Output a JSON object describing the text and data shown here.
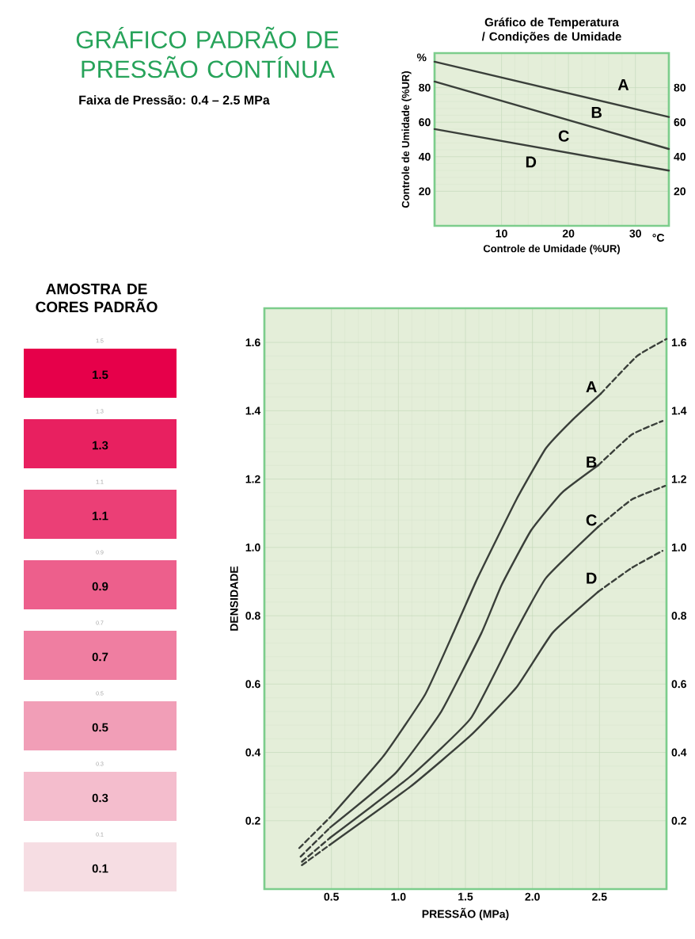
{
  "chart_data": [
    {
      "type": "other",
      "title": "GRÁFICO PADRÃO DE PRESSÃO CONTÍNUA",
      "subtitle": "Faixa de Pressão: 0.4 – 2.5 MPa"
    },
    {
      "type": "line",
      "title": "Gráfico de Temperatura / Condições de Umidade",
      "xlabel": "Controle de Umidade (%UR)",
      "ylabel": "Controle de Umidade (%UR)",
      "xlim": [
        0,
        35
      ],
      "xticks": [
        10,
        20,
        30
      ],
      "ylim": [
        0,
        100
      ],
      "yticks": [
        20,
        40,
        60,
        80
      ],
      "y2lim": [
        0,
        100
      ],
      "y2ticks": [
        20,
        40,
        60,
        80
      ],
      "grid": true,
      "marker": "none",
      "line_style": "solid",
      "series": [
        {
          "color": "#3a3f3a",
          "x": [
            0,
            35
          ],
          "values": [
            95,
            63
          ]
        },
        {
          "color": "#3a3f3a",
          "x": [
            0,
            35
          ],
          "values": [
            83.5,
            44.5
          ]
        },
        {
          "color": "#3a3f3a",
          "x": [
            0,
            35
          ],
          "values": [
            56,
            32
          ]
        }
      ],
      "annotations": [
        "%",
        "°C",
        "A",
        "B",
        "C",
        "D"
      ]
    },
    {
      "type": "heatmap",
      "title": "AMOSTRA DE CORES PADRÃO",
      "categories": [
        null
      ],
      "y_categories": [
        "1.5",
        "1.3",
        "1.1",
        "0.9",
        "0.7",
        "0.5",
        "0.3",
        "0.1"
      ],
      "cells": [
        [
          1.5
        ],
        [
          1.3
        ],
        [
          1.1
        ],
        [
          0.9
        ],
        [
          0.7
        ],
        [
          0.5
        ],
        [
          0.3
        ],
        [
          0.1
        ]
      ],
      "data_labels": true
    },
    {
      "type": "line",
      "xlabel": "PRESSÃO (MPa)",
      "ylabel": "DENSIDADE",
      "xlim": [
        0,
        3
      ],
      "xticks": [
        0.5,
        {
          "value": 1,
          "label": "1.0"
        },
        1.5,
        {
          "value": 2,
          "label": "2.0"
        },
        2.5
      ],
      "ylim": [
        0,
        1.7
      ],
      "yticks": [
        0.2,
        0.4,
        0.6,
        0.8,
        {
          "value": 1,
          "label": "1.0"
        },
        1.2,
        1.4,
        1.6
      ],
      "y2lim": [
        0,
        1.7
      ],
      "y2ticks": [
        0.2,
        0.4,
        0.6,
        0.8,
        {
          "value": 1,
          "label": "1.0"
        },
        1.2,
        1.4,
        1.6
      ],
      "grid": true,
      "marker": "none",
      "line_style": "solid",
      "series": [
        {
          "color": "#3a3f3a",
          "line_style": "dashed",
          "x": [
            0.26,
            0.49
          ],
          "values": [
            0.12,
            0.21
          ]
        },
        {
          "color": "#3a3f3a",
          "x": [
            0.49,
            0.89,
            1.2,
            1.41,
            1.59,
            1.88,
            2.1,
            2.29,
            2.51
          ],
          "values": [
            0.21,
            0.39,
            0.57,
            0.75,
            0.91,
            1.14,
            1.29,
            1.37,
            1.45
          ]
        },
        {
          "color": "#3a3f3a",
          "line_style": "dashed",
          "x": [
            2.51,
            2.78,
            3.0
          ],
          "values": [
            1.45,
            1.56,
            1.61
          ]
        },
        {
          "color": "#3a3f3a",
          "line_style": "dashed",
          "x": [
            0.27,
            0.49
          ],
          "values": [
            0.095,
            0.18
          ]
        },
        {
          "color": "#3a3f3a",
          "x": [
            0.49,
            0.98,
            1.32,
            1.62,
            1.77,
            1.99,
            2.22,
            2.49
          ],
          "values": [
            0.18,
            0.34,
            0.52,
            0.75,
            0.89,
            1.05,
            1.16,
            1.24
          ]
        },
        {
          "color": "#3a3f3a",
          "line_style": "dashed",
          "x": [
            2.49,
            2.74,
            2.97
          ],
          "values": [
            1.24,
            1.33,
            1.37
          ]
        },
        {
          "color": "#3a3f3a",
          "line_style": "dashed",
          "x": [
            0.28,
            0.49
          ],
          "values": [
            0.08,
            0.15
          ]
        },
        {
          "color": "#3a3f3a",
          "x": [
            0.49,
            1.09,
            1.54,
            1.87,
            2.1,
            2.49
          ],
          "values": [
            0.15,
            0.33,
            0.5,
            0.75,
            0.91,
            1.06
          ]
        },
        {
          "color": "#3a3f3a",
          "line_style": "dashed",
          "x": [
            2.49,
            2.74,
            2.99
          ],
          "values": [
            1.06,
            1.14,
            1.18
          ]
        },
        {
          "color": "#3a3f3a",
          "line_style": "dashed",
          "x": [
            0.28,
            0.49
          ],
          "values": [
            0.07,
            0.13
          ]
        },
        {
          "color": "#3a3f3a",
          "x": [
            0.49,
            1.09,
            1.54,
            1.88,
            2.15,
            2.49
          ],
          "values": [
            0.13,
            0.3,
            0.45,
            0.59,
            0.75,
            0.87
          ]
        },
        {
          "color": "#3a3f3a",
          "line_style": "dashed",
          "x": [
            2.49,
            2.74,
            2.97
          ],
          "values": [
            0.87,
            0.94,
            0.99
          ]
        }
      ],
      "annotations": [
        "A",
        "B",
        "C",
        "D"
      ]
    }
  ]
}
